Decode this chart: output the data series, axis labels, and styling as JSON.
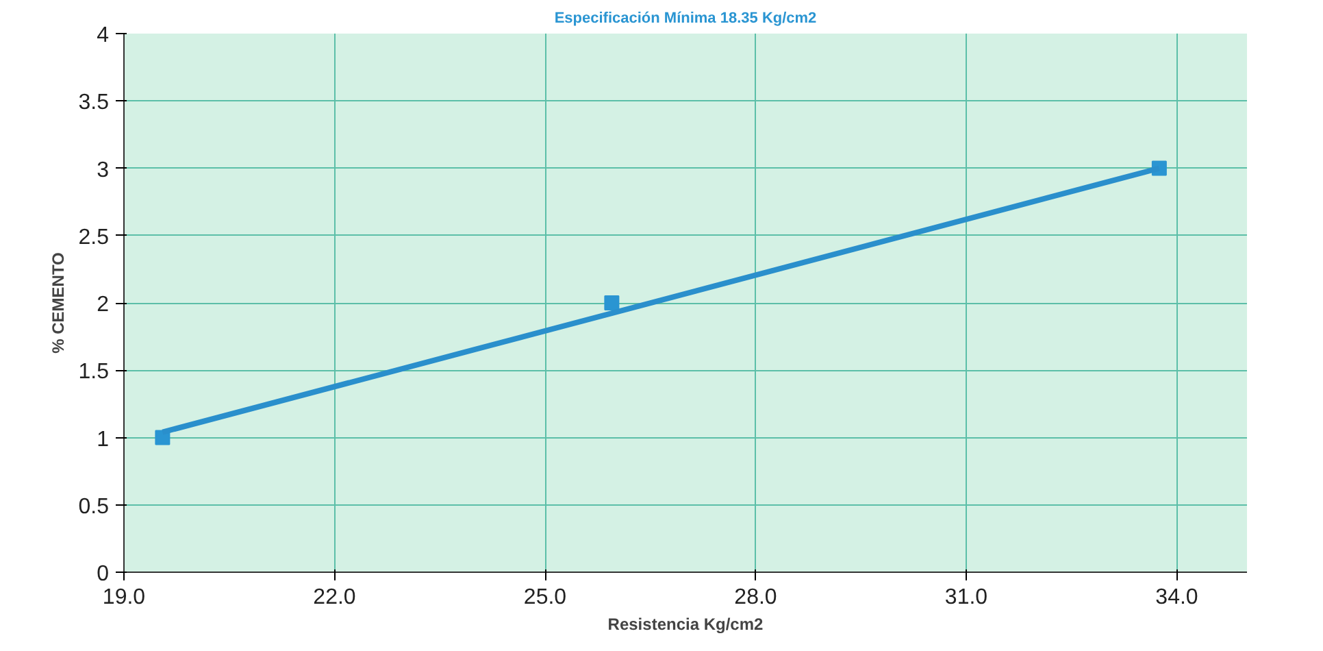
{
  "chart_data": {
    "type": "line",
    "title": "Especificación Mínima 18.35 Kg/cm2",
    "xlabel": "Resistencia Kg/cm2",
    "ylabel": "% CEMENTO",
    "series": [
      {
        "type": "scatter",
        "color": "#2a95d2",
        "x": [
          19.55,
          25.95,
          33.75
        ],
        "values": [
          1,
          2,
          3
        ],
        "marker": "square"
      },
      {
        "color": "#2a8fcc",
        "x": [
          19.55,
          33.75
        ],
        "values": [
          1.04,
          3.0
        ],
        "marker": "none",
        "line_style": "solid"
      }
    ],
    "xlim": [
      19.0,
      35.0
    ],
    "xticks": [
      {
        "value": 19,
        "label": "19.0"
      },
      {
        "value": 22,
        "label": "22.0"
      },
      {
        "value": 25,
        "label": "25.0"
      },
      {
        "value": 28,
        "label": "28.0"
      },
      {
        "value": 31,
        "label": "31.0"
      },
      {
        "value": 34,
        "label": "34.0"
      }
    ],
    "ylim": [
      0,
      4
    ],
    "yticks": [
      0,
      0.5,
      1,
      1.5,
      2,
      2.5,
      3,
      3.5,
      4
    ],
    "grid": true
  }
}
